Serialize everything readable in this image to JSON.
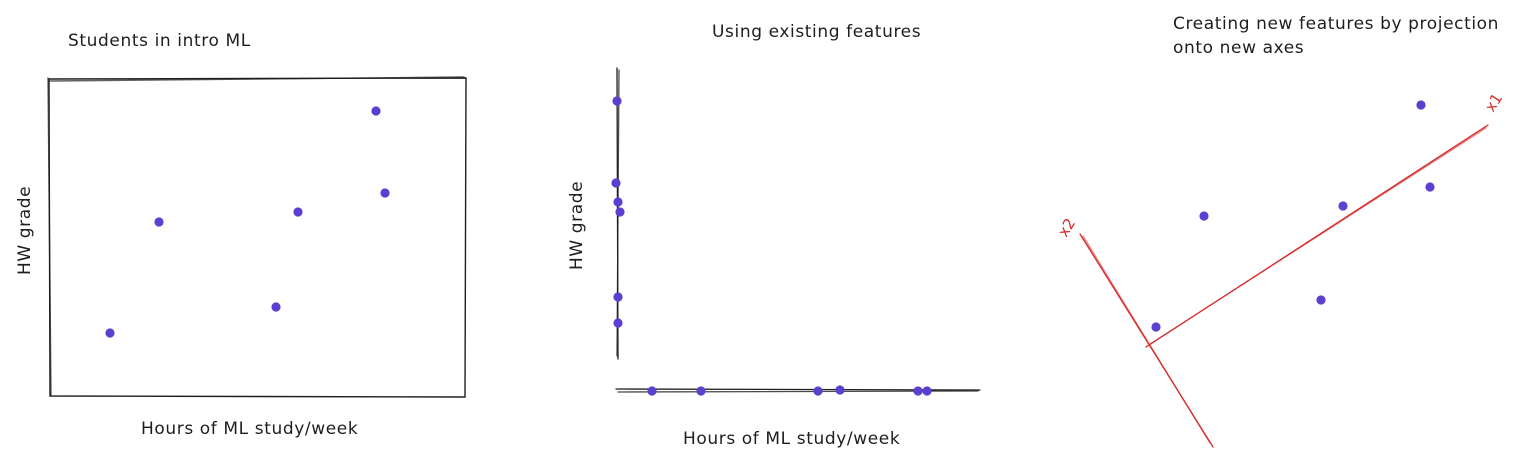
{
  "panels": [
    {
      "title": "Students in intro ML",
      "xlabel": "Hours of ML study/week",
      "ylabel": "HW grade"
    },
    {
      "title": "Using existing features",
      "xlabel": "Hours of ML study/week",
      "ylabel": "HW grade"
    },
    {
      "title_lines": [
        "Creating new features by projection",
        "onto new axes"
      ],
      "axis_labels": [
        "x1",
        "x2"
      ]
    }
  ],
  "colors": {
    "points": "#5b3fd1",
    "ink": "#1e1e1e",
    "new_axes": "#d62a2a"
  }
}
